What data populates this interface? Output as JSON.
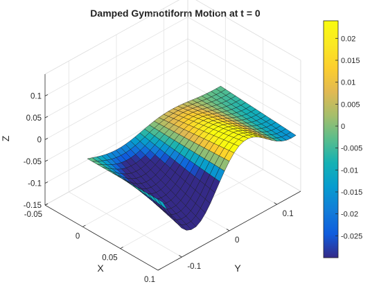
{
  "chart_data": {
    "type": "surface3d",
    "title": "Damped Gymnotiform Motion at t = 0",
    "xlabel": "X",
    "ylabel": "Y",
    "zlabel": "Z",
    "xlim": [
      -0.05,
      0.1
    ],
    "ylim": [
      -0.15,
      0.15
    ],
    "zlim": [
      -0.15,
      0.15
    ],
    "x_ticks": [
      "-0.05",
      "0",
      "0.05",
      "0.1"
    ],
    "y_ticks": [
      "-0.1",
      "0",
      "0.1"
    ],
    "z_ticks": [
      "-0.15",
      "-0.1",
      "-0.05",
      "0",
      "0.05",
      "0.1"
    ],
    "x_range": [
      0,
      0.1
    ],
    "y_range": [
      -0.14,
      0.14
    ],
    "grid": true,
    "colormap": "parula",
    "colorbar": {
      "position": "right",
      "clim": [
        -0.03,
        0.024
      ],
      "ticks": [
        "-0.025",
        "-0.02",
        "-0.015",
        "-0.01",
        "-0.005",
        "0",
        "0.005",
        "0.01",
        "0.015",
        "0.02"
      ]
    },
    "surface": {
      "x_grid": [
        0,
        0.0067,
        0.0133,
        0.02,
        0.0267,
        0.0333,
        0.04,
        0.0467,
        0.0533,
        0.06,
        0.0667,
        0.0733,
        0.08,
        0.0867,
        0.0933,
        0.1
      ],
      "y_grid": [
        -0.14,
        -0.13,
        -0.12,
        -0.11,
        -0.1,
        -0.09,
        -0.08,
        -0.07,
        -0.06,
        -0.05,
        -0.04,
        -0.03,
        -0.02,
        -0.01,
        0,
        0.01,
        0.02,
        0.03,
        0.04,
        0.05,
        0.06,
        0.07,
        0.08,
        0.09,
        0.1,
        0.11,
        0.12,
        0.13,
        0.14
      ],
      "z_at_x0": [
        0,
        -0.0039,
        -0.0077,
        -0.0111,
        -0.0138,
        -0.0156,
        -0.0164,
        -0.0163,
        -0.0151,
        -0.0131,
        -0.0105,
        -0.0074,
        -0.0042,
        -0.0012,
        0.0015,
        0.0037,
        0.0052,
        0.006,
        0.0062,
        0.0057,
        0.0047,
        0.0034,
        0.0019,
        0.0004,
        -0.0009,
        -0.0018,
        -0.0025,
        -0.0027,
        -0.0026
      ],
      "z_at_x_max": [
        0,
        -0.0237,
        -0.0463,
        -0.0667,
        -0.0837,
        -0.0948,
        -0.0993,
        -0.0986,
        -0.0917,
        -0.0794,
        -0.0635,
        -0.0447,
        -0.0255,
        -0.007,
        0.0092,
        0.0224,
        0.0317,
        0.0364,
        0.0373,
        0.0343,
        0.0285,
        0.0205,
        0.0115,
        0.0027,
        -0.0052,
        -0.0111,
        -0.0151,
        -0.0165,
        -0.016
      ],
      "z_profile": "z varies linearly in x between z_at_x0 and z_at_x_max"
    }
  }
}
